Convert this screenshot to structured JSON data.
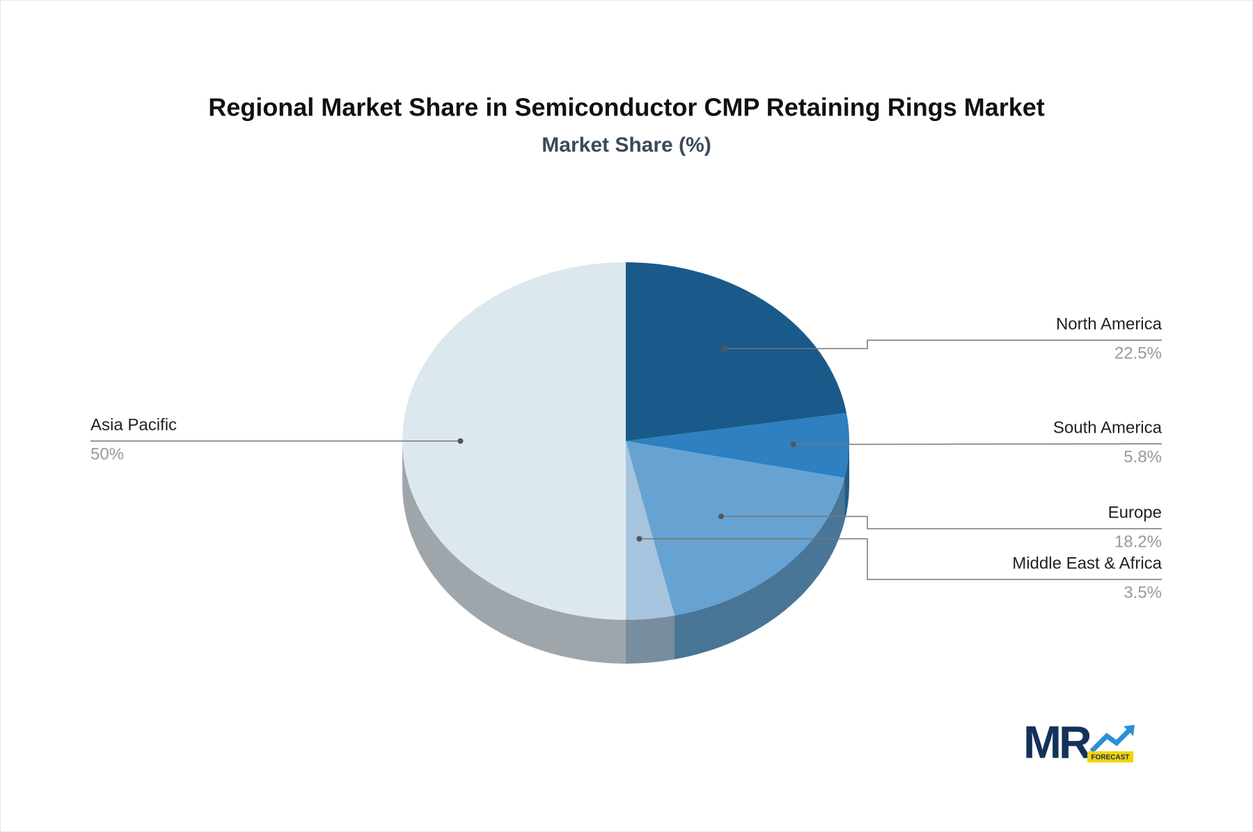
{
  "chart_data": {
    "type": "pie3d",
    "title": "Regional Market Share in Semiconductor CMP Retaining Rings Market",
    "subtitle": "Market Share (%)",
    "categories": [
      "North America",
      "South America",
      "Europe",
      "Middle East & Africa",
      "Asia Pacific"
    ],
    "values": [
      22.5,
      5.8,
      18.2,
      3.5,
      50
    ],
    "value_labels": [
      "22.5%",
      "5.8%",
      "18.2%",
      "3.5%",
      "50%"
    ],
    "colors": [
      "#1a5a8a",
      "#2e80c0",
      "#66a3d2",
      "#a6c4de",
      "#dde7ee"
    ]
  },
  "logo": {
    "text": "MR",
    "tag": "FORECAST"
  }
}
